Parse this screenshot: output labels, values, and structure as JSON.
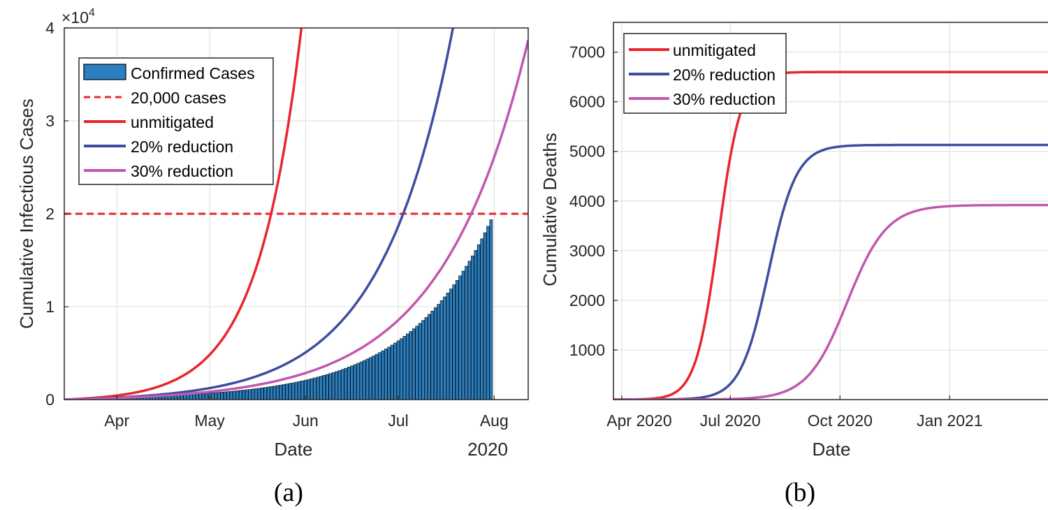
{
  "colors": {
    "unmitigated": "#e8262b",
    "reduction20": "#3e4da0",
    "reduction30": "#c158b0",
    "bars_fill": "#2a7fc0",
    "threshold": "#e8262b"
  },
  "chart_data": [
    {
      "type": "bar",
      "panel_caption": "(a)",
      "xlabel": "Date",
      "ylabel": "Cumulative Infectious Cases",
      "year_label": "2020",
      "exponent_label": "×10",
      "exponent_power": "4",
      "x_ticks": [
        "Apr",
        "May",
        "Jun",
        "Jul",
        "Aug"
      ],
      "y_ticks": [
        "0",
        "1",
        "2",
        "3",
        "4"
      ],
      "y_scale": 10000,
      "ylim": [
        0,
        40000
      ],
      "xlim_days": [
        0,
        150
      ],
      "x_tick_days": [
        17,
        47,
        78,
        108,
        139
      ],
      "legend": [
        "Confirmed Cases",
        "20,000 cases",
        "unmitigated",
        "20% reduction",
        "30% reduction"
      ],
      "legend_position": "top-left",
      "threshold": 20000,
      "confirmed_cases": {
        "start_day": 10,
        "end_day": 138,
        "growth_rate": 0.0375,
        "final_value": 19300
      },
      "series": [
        {
          "name": "unmitigated",
          "a": 180,
          "r": 0.0705,
          "shift": 0
        },
        {
          "name": "20% reduction",
          "a": 180,
          "r": 0.043,
          "shift": 0
        },
        {
          "name": "30% reduction",
          "a": 180,
          "r": 0.0358,
          "shift": 0
        }
      ],
      "grid": true
    },
    {
      "type": "line",
      "panel_caption": "(b)",
      "xlabel": "Date",
      "ylabel": "Cumulative Deaths",
      "x_ticks": [
        "Apr 2020",
        "Jul 2020",
        "Oct 2020",
        "Jan 2021"
      ],
      "x_tick_days": [
        7,
        98,
        190,
        282
      ],
      "xlim_days": [
        0,
        375
      ],
      "y_ticks": [
        "1000",
        "2000",
        "3000",
        "4000",
        "5000",
        "6000",
        "7000"
      ],
      "ylim": [
        0,
        7600
      ],
      "legend": [
        "unmitigated",
        "20% reduction",
        "30% reduction"
      ],
      "legend_position": "top-left",
      "series": [
        {
          "name": "unmitigated",
          "final": 6600,
          "mid_day": 88,
          "steepness": 0.105
        },
        {
          "name": "20% reduction",
          "final": 5130,
          "mid_day": 130,
          "steepness": 0.085
        },
        {
          "name": "30% reduction",
          "final": 3920,
          "mid_day": 196,
          "steepness": 0.06
        }
      ],
      "grid": true
    }
  ]
}
